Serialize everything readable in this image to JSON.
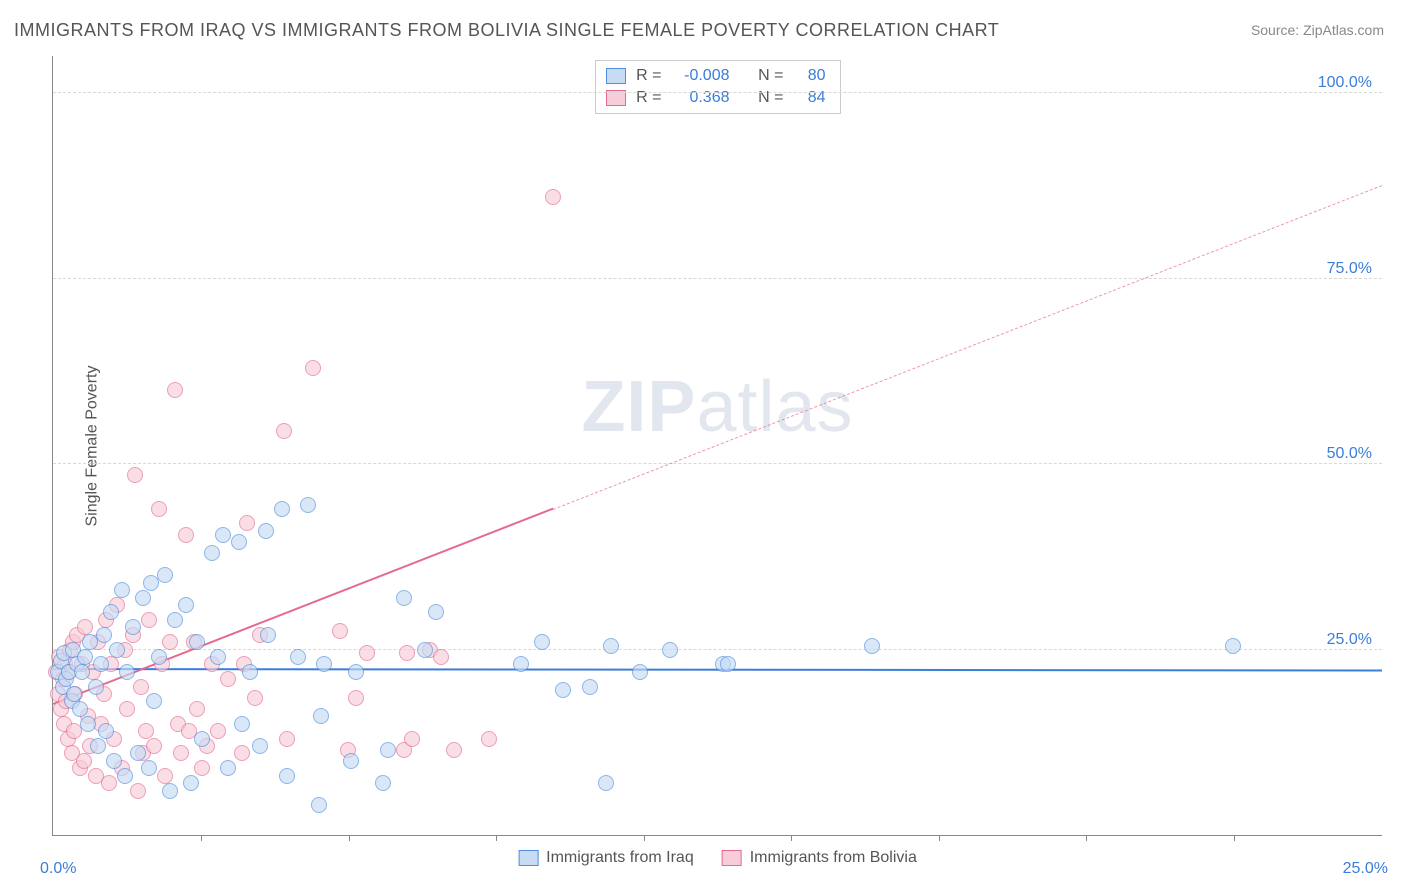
{
  "title": "IMMIGRANTS FROM IRAQ VS IMMIGRANTS FROM BOLIVIA SINGLE FEMALE POVERTY CORRELATION CHART",
  "source": "Source: ZipAtlas.com",
  "ylabel": "Single Female Poverty",
  "watermark_strong": "ZIP",
  "watermark_light": "atlas",
  "chart": {
    "type": "scatter",
    "xlim": [
      0.0,
      25.0
    ],
    "ylim": [
      0.0,
      105.0
    ],
    "y_gridlines": [
      25.0,
      50.0,
      75.0,
      100.0
    ],
    "y_tick_labels": [
      "25.0%",
      "50.0%",
      "75.0%",
      "100.0%"
    ],
    "x_ticks": [
      2.78,
      5.56,
      8.33,
      11.11,
      13.89,
      16.67,
      19.44,
      22.22
    ],
    "x_origin_label": "0.0%",
    "x_end_label": "25.0%",
    "background_color": "#ffffff",
    "grid_color": "#d8d8d8",
    "axis_color": "#888888",
    "marker_radius": 8,
    "marker_opacity": 0.65,
    "title_fontsize": 18,
    "label_fontsize": 16,
    "tick_fontsize": 16,
    "tick_color": "#3b7dd8"
  },
  "series": [
    {
      "name": "Immigrants from Iraq",
      "fill": "#c7dbf4",
      "stroke": "#4f8fe0",
      "R": "-0.008",
      "N": "80",
      "trend": {
        "x1": 0.0,
        "y1": 22.3,
        "x2": 25.0,
        "y2": 22.1,
        "color": "#3b7dd8",
        "width": 2.4,
        "solid_until_x": 25.0
      },
      "points": [
        [
          0.1,
          22.0
        ],
        [
          0.15,
          23.5
        ],
        [
          0.18,
          20.0
        ],
        [
          0.2,
          24.5
        ],
        [
          0.25,
          21.0
        ],
        [
          0.3,
          22.0
        ],
        [
          0.35,
          18.0
        ],
        [
          0.38,
          25.0
        ],
        [
          0.4,
          19.0
        ],
        [
          0.45,
          23.0
        ],
        [
          0.5,
          17.0
        ],
        [
          0.55,
          22.0
        ],
        [
          0.6,
          24.0
        ],
        [
          0.65,
          15.0
        ],
        [
          0.7,
          26.0
        ],
        [
          0.8,
          20.0
        ],
        [
          0.85,
          12.0
        ],
        [
          0.9,
          23.0
        ],
        [
          0.95,
          27.0
        ],
        [
          1.0,
          14.0
        ],
        [
          1.1,
          30.0
        ],
        [
          1.15,
          10.0
        ],
        [
          1.2,
          25.0
        ],
        [
          1.3,
          33.0
        ],
        [
          1.35,
          8.0
        ],
        [
          1.4,
          22.0
        ],
        [
          1.5,
          28.0
        ],
        [
          1.6,
          11.0
        ],
        [
          1.7,
          32.0
        ],
        [
          1.8,
          9.0
        ],
        [
          1.85,
          34.0
        ],
        [
          1.9,
          18.0
        ],
        [
          2.0,
          24.0
        ],
        [
          2.1,
          35.0
        ],
        [
          2.2,
          6.0
        ],
        [
          2.3,
          29.0
        ],
        [
          2.5,
          31.0
        ],
        [
          2.6,
          7.0
        ],
        [
          2.7,
          26.0
        ],
        [
          2.8,
          13.0
        ],
        [
          3.0,
          38.0
        ],
        [
          3.1,
          24.0
        ],
        [
          3.2,
          40.5
        ],
        [
          3.3,
          9.0
        ],
        [
          3.5,
          39.5
        ],
        [
          3.55,
          15.0
        ],
        [
          3.7,
          22.0
        ],
        [
          3.9,
          12.0
        ],
        [
          4.0,
          41.0
        ],
        [
          4.05,
          27.0
        ],
        [
          4.3,
          44.0
        ],
        [
          4.4,
          8.0
        ],
        [
          4.6,
          24.0
        ],
        [
          4.8,
          44.5
        ],
        [
          5.0,
          4.0
        ],
        [
          5.05,
          16.0
        ],
        [
          5.1,
          23.0
        ],
        [
          5.6,
          10.0
        ],
        [
          5.7,
          22.0
        ],
        [
          6.2,
          7.0
        ],
        [
          6.3,
          11.5
        ],
        [
          6.6,
          32.0
        ],
        [
          7.0,
          25.0
        ],
        [
          7.2,
          30.0
        ],
        [
          8.8,
          23.0
        ],
        [
          9.2,
          26.0
        ],
        [
          9.6,
          19.5
        ],
        [
          10.1,
          20.0
        ],
        [
          10.4,
          7.0
        ],
        [
          10.5,
          25.5
        ],
        [
          11.05,
          22.0
        ],
        [
          11.6,
          25.0
        ],
        [
          12.6,
          23.0
        ],
        [
          12.7,
          23.0
        ],
        [
          15.4,
          25.5
        ],
        [
          22.2,
          25.5
        ]
      ]
    },
    {
      "name": "Immigrants from Bolivia",
      "fill": "#f6cdd8",
      "stroke": "#e66a8f",
      "R": "0.368",
      "N": "84",
      "trend": {
        "x1": 0.0,
        "y1": 17.5,
        "x2": 25.0,
        "y2": 87.5,
        "color": "#e66a8f",
        "width": 2.2,
        "solid_until_x": 9.4
      },
      "points": [
        [
          0.05,
          22.0
        ],
        [
          0.1,
          19.0
        ],
        [
          0.12,
          24.0
        ],
        [
          0.15,
          17.0
        ],
        [
          0.18,
          21.0
        ],
        [
          0.2,
          15.0
        ],
        [
          0.22,
          23.0
        ],
        [
          0.25,
          18.0
        ],
        [
          0.28,
          13.0
        ],
        [
          0.3,
          22.0
        ],
        [
          0.32,
          25.0
        ],
        [
          0.35,
          11.0
        ],
        [
          0.38,
          26.0
        ],
        [
          0.4,
          14.0
        ],
        [
          0.42,
          19.0
        ],
        [
          0.45,
          27.0
        ],
        [
          0.5,
          9.0
        ],
        [
          0.55,
          23.0
        ],
        [
          0.58,
          10.0
        ],
        [
          0.6,
          28.0
        ],
        [
          0.65,
          16.0
        ],
        [
          0.7,
          12.0
        ],
        [
          0.75,
          22.0
        ],
        [
          0.8,
          8.0
        ],
        [
          0.85,
          26.0
        ],
        [
          0.9,
          15.0
        ],
        [
          0.95,
          19.0
        ],
        [
          1.0,
          29.0
        ],
        [
          1.05,
          7.0
        ],
        [
          1.1,
          23.0
        ],
        [
          1.15,
          13.0
        ],
        [
          1.2,
          31.0
        ],
        [
          1.3,
          9.0
        ],
        [
          1.35,
          25.0
        ],
        [
          1.4,
          17.0
        ],
        [
          1.5,
          27.0
        ],
        [
          1.55,
          48.5
        ],
        [
          1.6,
          6.0
        ],
        [
          1.65,
          20.0
        ],
        [
          1.7,
          11.0
        ],
        [
          1.75,
          14.0
        ],
        [
          1.8,
          29.0
        ],
        [
          1.9,
          12.0
        ],
        [
          2.0,
          44.0
        ],
        [
          2.05,
          23.0
        ],
        [
          2.1,
          8.0
        ],
        [
          2.2,
          26.0
        ],
        [
          2.3,
          60.0
        ],
        [
          2.35,
          15.0
        ],
        [
          2.4,
          11.0
        ],
        [
          2.5,
          40.5
        ],
        [
          2.55,
          14.0
        ],
        [
          2.65,
          26.0
        ],
        [
          2.7,
          17.0
        ],
        [
          2.8,
          9.0
        ],
        [
          2.9,
          12.0
        ],
        [
          3.0,
          23.0
        ],
        [
          3.1,
          14.0
        ],
        [
          3.3,
          21.0
        ],
        [
          3.55,
          11.0
        ],
        [
          3.6,
          23.0
        ],
        [
          3.65,
          42.0
        ],
        [
          3.8,
          18.5
        ],
        [
          3.9,
          27.0
        ],
        [
          4.35,
          54.5
        ],
        [
          4.4,
          13.0
        ],
        [
          4.9,
          63.0
        ],
        [
          5.4,
          27.5
        ],
        [
          5.55,
          11.5
        ],
        [
          5.7,
          18.5
        ],
        [
          5.9,
          24.5
        ],
        [
          6.6,
          11.5
        ],
        [
          6.65,
          24.5
        ],
        [
          6.75,
          13.0
        ],
        [
          7.1,
          25.0
        ],
        [
          7.3,
          24.0
        ],
        [
          7.55,
          11.5
        ],
        [
          8.2,
          13.0
        ],
        [
          9.4,
          86.0
        ]
      ]
    }
  ],
  "legend_labels": {
    "R": "R =",
    "N": "N ="
  }
}
